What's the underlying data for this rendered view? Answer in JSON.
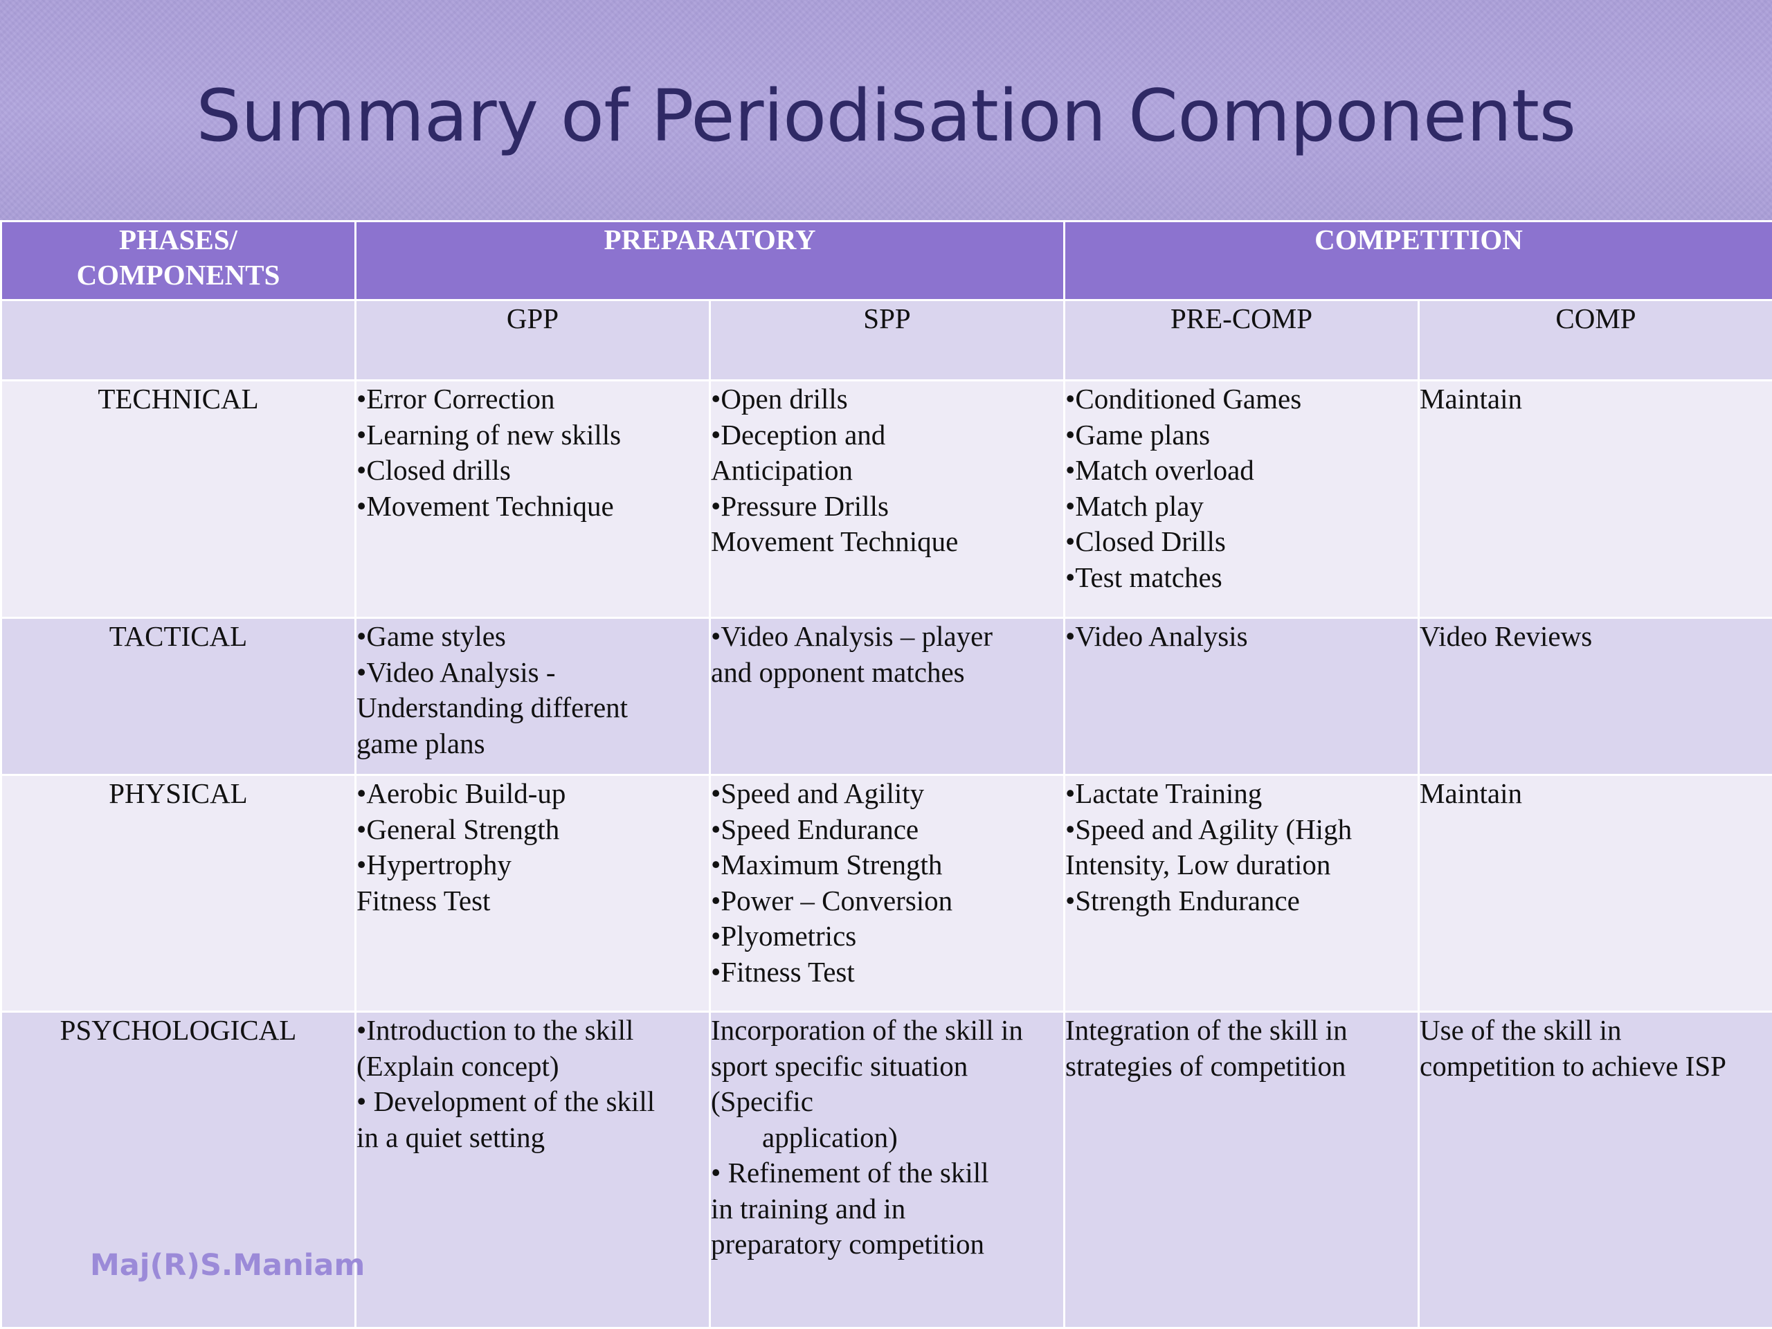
{
  "title": "Summary of Periodisation Components",
  "table": {
    "header": {
      "phases_label_line1": "PHASES/",
      "phases_label_line2": "COMPONENTS",
      "preparatory": "PREPARATORY",
      "competition": "COMPETITION"
    },
    "subheader": {
      "blank": "",
      "gpp": "GPP",
      "spp": "SPP",
      "pre_comp": "PRE-COMP",
      "comp": "COMP"
    },
    "rows": {
      "technical": {
        "label": "TECHNICAL",
        "gpp": [
          "•Error Correction",
          "•Learning of new skills",
          "•Closed drills",
          "•Movement Technique"
        ],
        "spp": [
          "•Open drills",
          "•Deception and",
          "Anticipation",
          "•Pressure Drills",
          "Movement Technique"
        ],
        "pre_comp": [
          "•Conditioned Games",
          "•Game plans",
          "•Match overload",
          "•Match play",
          "•Closed Drills",
          "•Test matches"
        ],
        "comp": [
          "Maintain"
        ]
      },
      "tactical": {
        "label": "TACTICAL",
        "gpp": [
          "•Game styles",
          "•Video Analysis -",
          "Understanding different",
          "game plans"
        ],
        "spp": [
          "•Video Analysis – player",
          "and opponent matches"
        ],
        "pre_comp": [
          "•Video Analysis"
        ],
        "comp": [
          "Video Reviews"
        ]
      },
      "physical": {
        "label": "PHYSICAL",
        "gpp": [
          "•Aerobic Build-up",
          "•General Strength",
          "•Hypertrophy",
          "Fitness Test"
        ],
        "spp": [
          "•Speed and Agility",
          "•Speed Endurance",
          "•Maximum Strength",
          "•Power – Conversion",
          "•Plyometrics",
          "•Fitness Test"
        ],
        "pre_comp": [
          "•Lactate Training",
          "•Speed and Agility (High",
          "Intensity, Low duration",
          "•Strength Endurance"
        ],
        "comp": [
          "Maintain"
        ]
      },
      "psychological": {
        "label": "PSYCHOLOGICAL",
        "gpp": [
          "•Introduction to the skill",
          "(Explain concept)",
          "•  Development of the skill",
          "in a quiet setting"
        ],
        "spp": [
          "Incorporation of the skill in",
          "sport specific situation",
          "(Specific",
          "application)",
          "•  Refinement of the skill",
          "in training and in",
          "preparatory competition"
        ],
        "pre_comp": [
          "Integration of the skill in",
          "strategies of competition"
        ],
        "comp": [
          "Use of the skill in",
          "competition to achieve ISP"
        ]
      }
    }
  },
  "watermark": "Maj(R)S.Maniam"
}
